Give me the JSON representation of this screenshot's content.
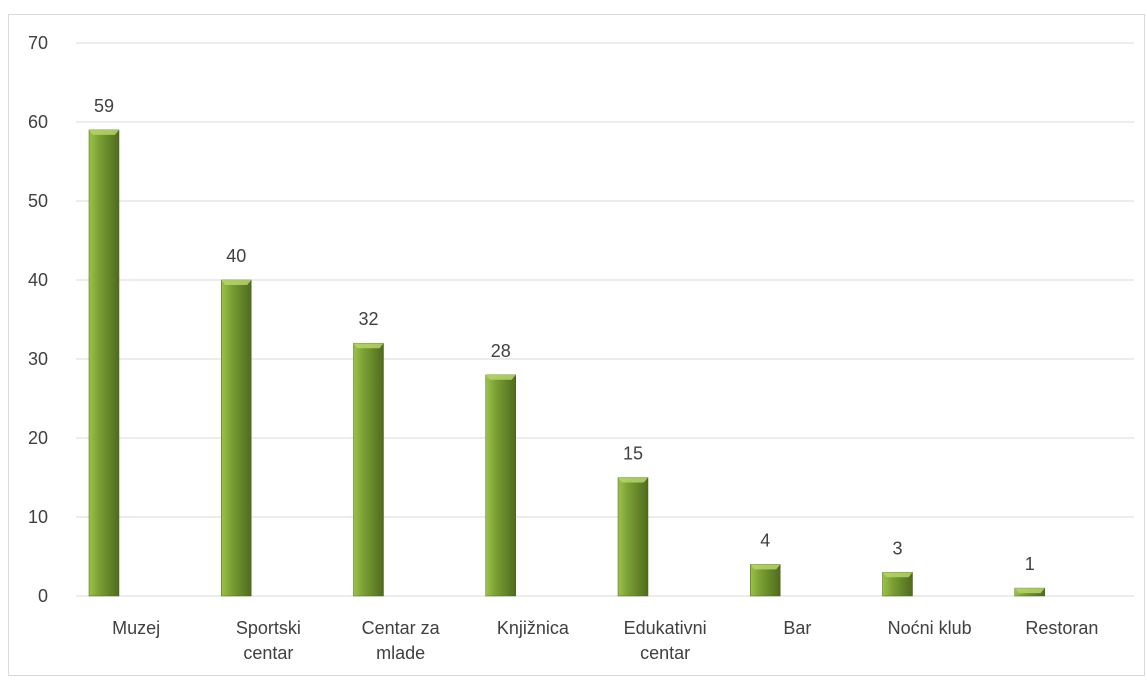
{
  "chart_data": {
    "type": "bar",
    "categories": [
      [
        "Muzej"
      ],
      [
        "Sportski",
        "centar"
      ],
      [
        "Centar za",
        "mlade"
      ],
      [
        "Knjižnica"
      ],
      [
        "Edukativni",
        "centar"
      ],
      [
        "Bar"
      ],
      [
        "Noćni klub"
      ],
      [
        "Restoran"
      ]
    ],
    "values": [
      59,
      40,
      32,
      28,
      15,
      4,
      3,
      1
    ],
    "data_labels": [
      "59",
      "40",
      "32",
      "28",
      "15",
      "4",
      "3",
      "1"
    ],
    "ylim": [
      0,
      70
    ],
    "yticks": [
      0,
      10,
      20,
      30,
      40,
      50,
      60,
      70
    ],
    "ytick_labels": [
      "0",
      "10",
      "20",
      "30",
      "40",
      "50",
      "60",
      "70"
    ],
    "grid": true,
    "legend": "none",
    "title": "",
    "xlabel": "",
    "ylabel": "",
    "colors": {
      "bar_light": "#9bc24a",
      "bar_mid": "#7a9e33",
      "bar_dark": "#4f6b1d",
      "gridline": "#d9d9d9",
      "text": "#404040"
    }
  }
}
